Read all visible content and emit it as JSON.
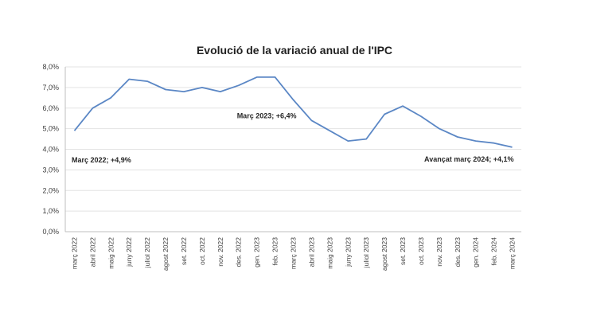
{
  "chart_data": {
    "type": "line",
    "title": "Evolució de la variació anual de l'IPC",
    "xlabel": "",
    "ylabel": "",
    "ylim": [
      0,
      8
    ],
    "yticks": [
      "0,0%",
      "1,0%",
      "2,0%",
      "3,0%",
      "4,0%",
      "5,0%",
      "6,0%",
      "7,0%",
      "8,0%"
    ],
    "grid": true,
    "legend": null,
    "categories": [
      "març 2022",
      "abril 2022",
      "maig 2022",
      "juny 2022",
      "juliol 2022",
      "agost 2022",
      "set. 2022",
      "oct. 2022",
      "nov. 2022",
      "des. 2022",
      "gen. 2023",
      "feb. 2023",
      "març 2023",
      "abril 2023",
      "maig 2023",
      "juny 2023",
      "juliol 2023",
      "agost 2023",
      "set. 2023",
      "oct. 2023",
      "nov. 2023",
      "des. 2023",
      "gen. 2024",
      "feb. 2024",
      "març 2024"
    ],
    "series": [
      {
        "name": "Variació anual IPC",
        "color": "#5b87c5",
        "values": [
          4.9,
          6.0,
          6.5,
          7.4,
          7.3,
          6.9,
          6.8,
          7.0,
          6.8,
          7.1,
          7.5,
          7.5,
          6.4,
          5.4,
          4.9,
          4.4,
          4.5,
          5.7,
          6.1,
          5.6,
          5.0,
          4.6,
          4.4,
          4.3,
          4.1
        ]
      }
    ],
    "annotations": [
      {
        "text": "Març 2022; +4,9%",
        "index": 0
      },
      {
        "text": "Març 2023;  +6,4%",
        "index": 12
      },
      {
        "text": "Avançat març 2024; +4,1%",
        "index": 24
      }
    ]
  }
}
